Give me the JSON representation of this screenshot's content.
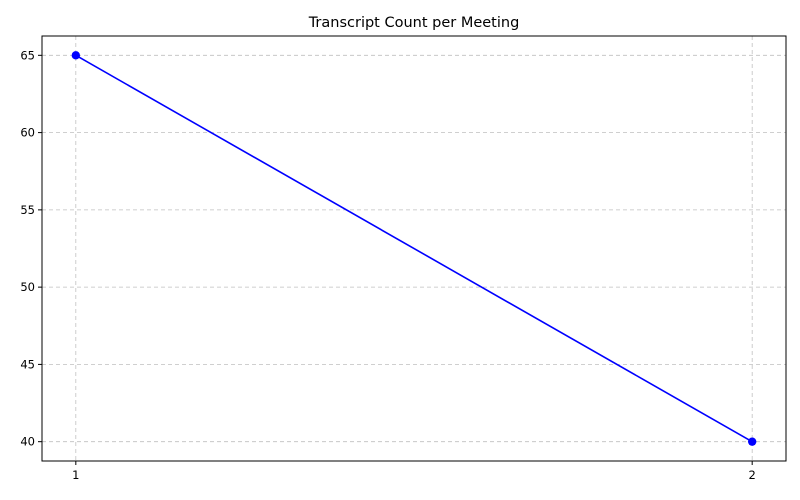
{
  "chart_data": {
    "type": "line",
    "title": "Transcript Count per Meeting",
    "xlabel": "",
    "ylabel": "",
    "x": [
      1,
      2
    ],
    "series": [
      {
        "values": [
          65,
          40
        ],
        "color": "#0000ff",
        "marker": "circle"
      }
    ],
    "x_ticks": [
      1,
      2
    ],
    "y_ticks": [
      40,
      45,
      50,
      55,
      60,
      65
    ],
    "xlim": [
      0.95,
      2.05
    ],
    "ylim": [
      38.75,
      66.25
    ],
    "grid": true,
    "legend": "none"
  }
}
